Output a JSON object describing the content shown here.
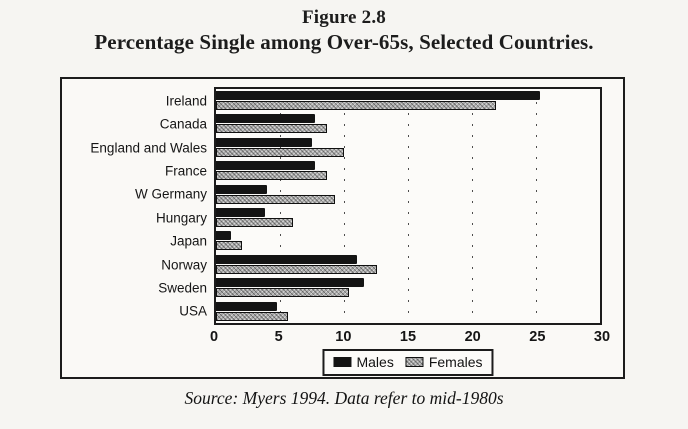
{
  "figure": {
    "label": "Figure 2.8",
    "title": "Percentage Single among Over-65s, Selected Countries.",
    "source": "Source: Myers 1994. Data refer to mid-1980s"
  },
  "legend": {
    "males": "Males",
    "females": "Females"
  },
  "colors": {
    "male_bar": "#141414",
    "female_bar": "#a9a9a9",
    "ink": "#1c1c1c",
    "paper": "#f6f5f2"
  },
  "chart_data": {
    "type": "bar",
    "orientation": "horizontal",
    "title": "Percentage Single among Over-65s, Selected Countries.",
    "categories": [
      "Ireland",
      "Canada",
      "England and Wales",
      "France",
      "W Germany",
      "Hungary",
      "Japan",
      "Norway",
      "Sweden",
      "USA"
    ],
    "series": [
      {
        "name": "Males",
        "values": [
          25.3,
          7.7,
          7.5,
          7.7,
          4.0,
          3.8,
          1.2,
          11.0,
          11.6,
          4.8
        ]
      },
      {
        "name": "Females",
        "values": [
          21.9,
          8.7,
          10.0,
          8.7,
          9.3,
          6.0,
          2.0,
          12.6,
          10.4,
          5.6
        ]
      }
    ],
    "xlabel": "",
    "ylabel": "",
    "xlim": [
      0,
      30
    ],
    "xticks": [
      0,
      5,
      10,
      15,
      20,
      25,
      30
    ],
    "gridlines": [
      5,
      10,
      15,
      20,
      25
    ],
    "grid": "dashed-vertical",
    "legend_position": "bottom"
  }
}
